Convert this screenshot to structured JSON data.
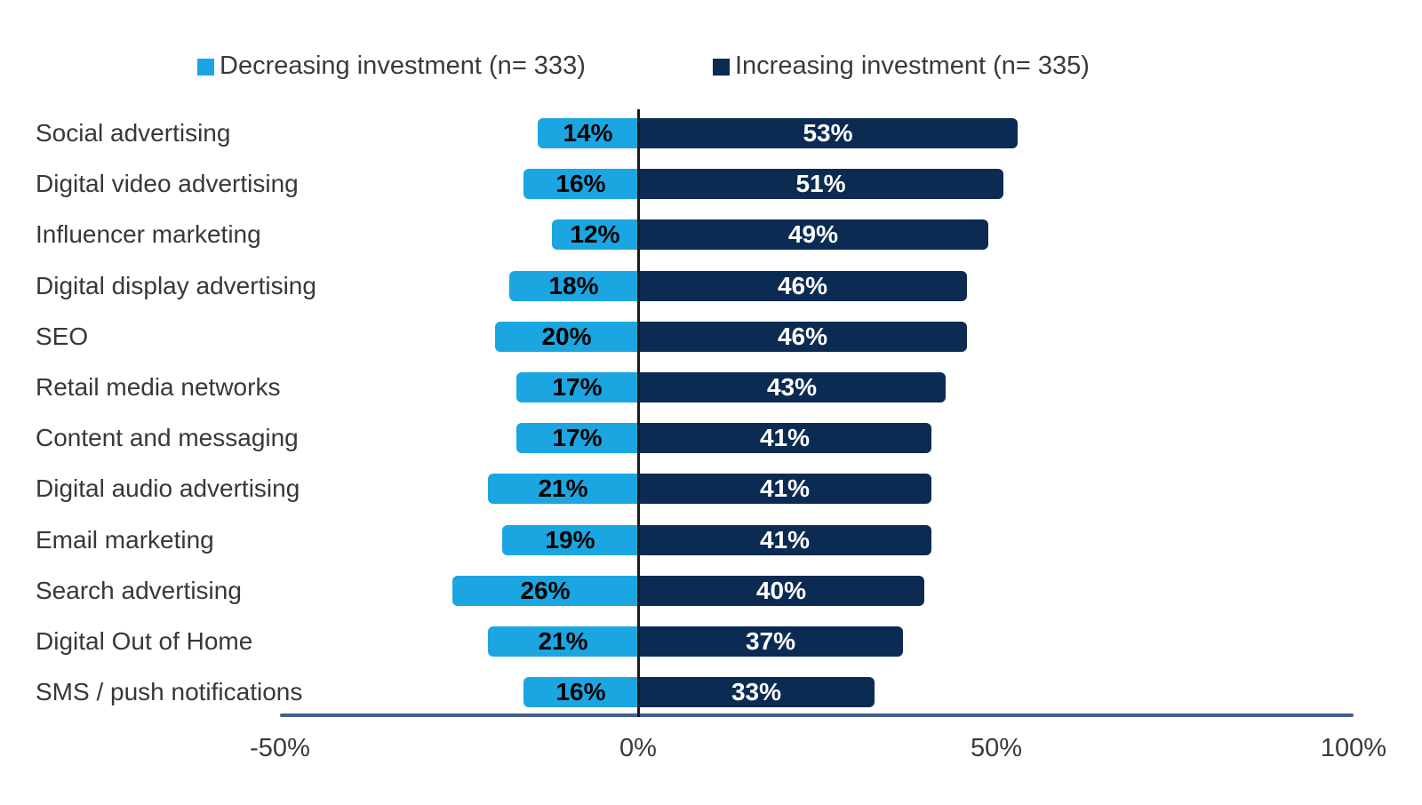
{
  "chart_data": {
    "type": "bar",
    "variant": "diverging-horizontal",
    "title": "",
    "categories": [
      "Social advertising",
      "Digital video advertising",
      "Influencer marketing",
      "Digital display advertising",
      "SEO",
      "Retail media networks",
      "Content and messaging",
      "Digital audio advertising",
      "Email marketing",
      "Search advertising",
      "Digital Out of Home",
      "SMS / push notifications"
    ],
    "series": [
      {
        "name": "Decreasing investment (n= 333)",
        "direction": "left",
        "color": "#1CA6E1",
        "label_color": "#000000",
        "values": [
          14,
          16,
          12,
          18,
          20,
          17,
          17,
          21,
          19,
          26,
          21,
          16
        ]
      },
      {
        "name": "Increasing investment (n= 335)",
        "direction": "right",
        "color": "#0C2B53",
        "label_color": "#FFFFFF",
        "values": [
          53,
          51,
          49,
          46,
          46,
          43,
          41,
          41,
          41,
          40,
          37,
          33
        ]
      }
    ],
    "value_suffix": "%",
    "x_axis": {
      "range": [
        -50,
        100
      ],
      "ticks": [
        {
          "label": "-50%",
          "value": -50
        },
        {
          "label": "0%",
          "value": 0
        },
        {
          "label": "50%",
          "value": 50
        },
        {
          "label": "100%",
          "value": 100
        }
      ],
      "line_color": "#44618F",
      "zero_line_color": "#1A1A1A"
    },
    "legend": {
      "position": "top",
      "items": [
        {
          "label": "Decreasing investment (n= 333)",
          "color": "#1CA6E1"
        },
        {
          "label": "Increasing investment (n= 335)",
          "color": "#0C2B53"
        }
      ]
    },
    "grid": "off",
    "background": "#FFFFFF"
  }
}
